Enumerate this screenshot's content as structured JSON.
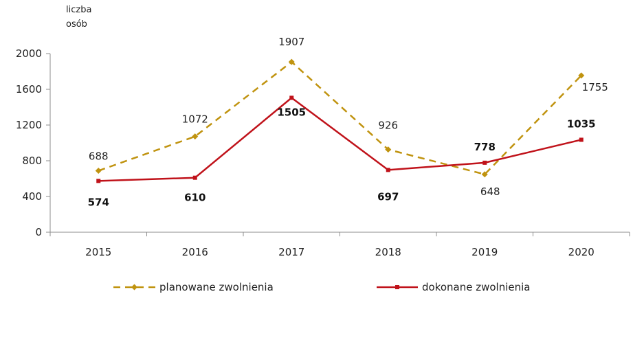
{
  "chart_data": {
    "type": "line",
    "ylabel_lines": [
      "liczba",
      "osób"
    ],
    "categories": [
      "2015",
      "2016",
      "2017",
      "2018",
      "2019",
      "2020"
    ],
    "ylim": [
      0,
      2000
    ],
    "yticks": [
      0,
      400,
      800,
      1200,
      1600,
      2000
    ],
    "yticks_text": [
      "0",
      "400",
      "800",
      "1200",
      "1600",
      "2000"
    ],
    "grid": false,
    "legend_position": "bottom",
    "series": [
      {
        "name": "planowane zwolnienia",
        "values": [
          688,
          1072,
          1907,
          926,
          648,
          1755
        ],
        "labels": [
          "688",
          "1072",
          "1907",
          "926",
          "648",
          "1755"
        ],
        "color": "#C0930F",
        "style": "dashed",
        "marker": "diamond"
      },
      {
        "name": "dokonane zwolnienia",
        "values": [
          574,
          610,
          1505,
          697,
          778,
          1035
        ],
        "labels": [
          "574",
          "610",
          "1505",
          "697",
          "778",
          "1035"
        ],
        "color": "#C0121A",
        "style": "solid",
        "marker": "square"
      }
    ]
  }
}
